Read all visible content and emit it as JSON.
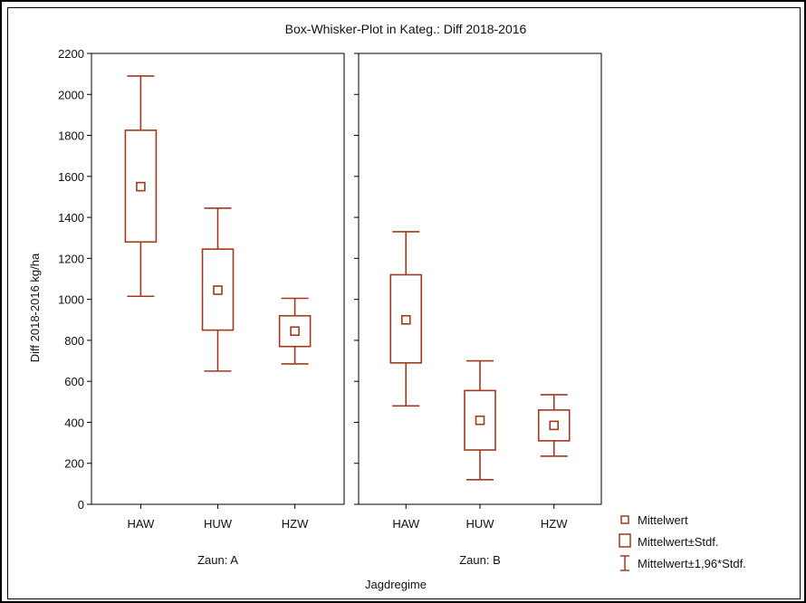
{
  "chart_data": {
    "type": "boxplot",
    "title": "Box-Whisker-Plot in Kateg.: Diff 2018-2016",
    "ylabel": "Diff 2018-2016 kg/ha",
    "xlabel": "Jagdregime",
    "ylim": [
      0,
      2200
    ],
    "yticks": [
      0,
      200,
      400,
      600,
      800,
      1000,
      1200,
      1400,
      1600,
      1800,
      2000,
      2200
    ],
    "grid": false,
    "color": "#a0391e",
    "legend_position": "bottom-right",
    "legend": [
      {
        "symbol": "mean-square",
        "label": "Mittelwert"
      },
      {
        "symbol": "box",
        "label": "Mittelwert±Stdf."
      },
      {
        "symbol": "whisker",
        "label": "Mittelwert±1,96*Stdf."
      }
    ],
    "panels": [
      {
        "label": "Zaun: A",
        "categories": [
          "HAW",
          "HUW",
          "HZW"
        ],
        "mean": [
          1550,
          1045,
          845
        ],
        "box_low": [
          1280,
          850,
          770
        ],
        "box_high": [
          1825,
          1245,
          920
        ],
        "whisker_low": [
          1015,
          650,
          685
        ],
        "whisker_high": [
          2090,
          1445,
          1005
        ]
      },
      {
        "label": "Zaun: B",
        "categories": [
          "HAW",
          "HUW",
          "HZW"
        ],
        "mean": [
          900,
          410,
          385
        ],
        "box_low": [
          690,
          265,
          310
        ],
        "box_high": [
          1120,
          555,
          460
        ],
        "whisker_low": [
          480,
          120,
          235
        ],
        "whisker_high": [
          1330,
          700,
          535
        ]
      }
    ]
  }
}
